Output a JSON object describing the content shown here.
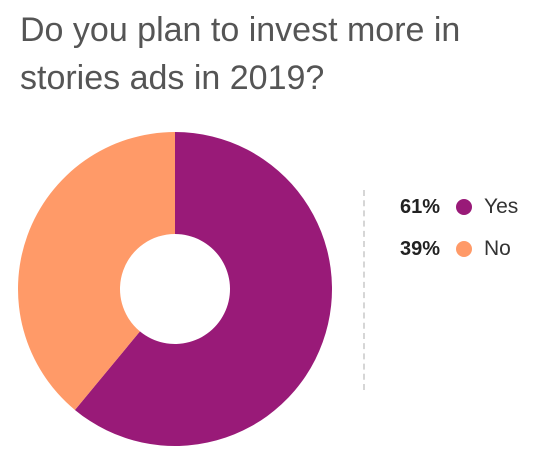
{
  "chart_data": {
    "type": "pie",
    "title": "Do you plan to invest more in stories ads in 2019?",
    "donut": true,
    "slices": [
      {
        "label": "Yes",
        "value": 61,
        "display": "61%",
        "color": "#991a78"
      },
      {
        "label": "No",
        "value": 39,
        "display": "39%",
        "color": "#ff9a68"
      }
    ],
    "legend_position": "right"
  }
}
